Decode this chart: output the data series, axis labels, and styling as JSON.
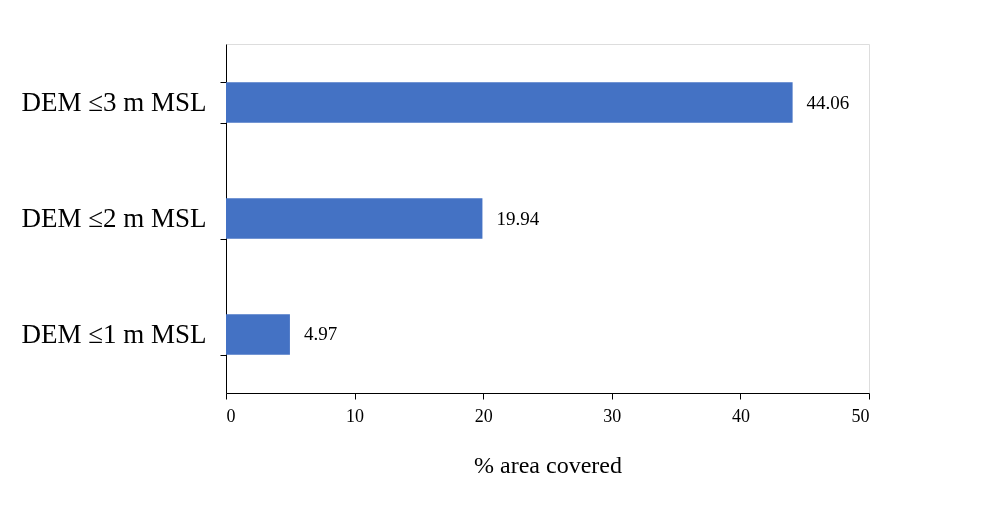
{
  "chart_data": {
    "type": "bar",
    "orientation": "horizontal",
    "categories": [
      "DEM ≤3 m MSL",
      "DEM ≤2 m MSL",
      "DEM ≤1 m MSL"
    ],
    "values": [
      44.06,
      19.94,
      4.97
    ],
    "color": "#4472c4",
    "xlabel": "% area covered",
    "xlim": [
      0,
      50
    ],
    "xticks": [
      0,
      10,
      20,
      30,
      40,
      50
    ],
    "grid": false,
    "data_labels": true
  }
}
